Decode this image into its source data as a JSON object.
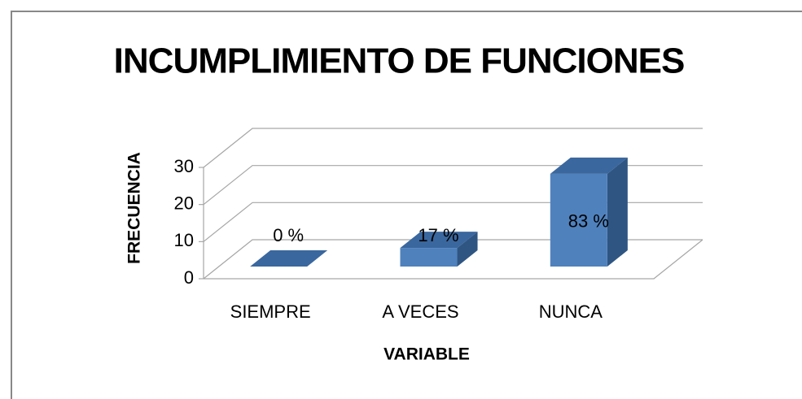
{
  "chart_data": {
    "type": "bar3d",
    "title": "INCUMPLIMIENTO DE FUNCIONES",
    "xlabel": "VARIABLE",
    "ylabel": "FRECUENCIA",
    "categories": [
      "SIEMPRE",
      "A VECES",
      "NUNCA"
    ],
    "values": [
      0,
      5,
      25
    ],
    "value_labels": [
      "0 %",
      "17 %",
      "83 %"
    ],
    "color": "#4f81bd",
    "ylim": [
      0,
      30
    ],
    "yticks": [
      0,
      10,
      20,
      30
    ],
    "grid": true
  }
}
